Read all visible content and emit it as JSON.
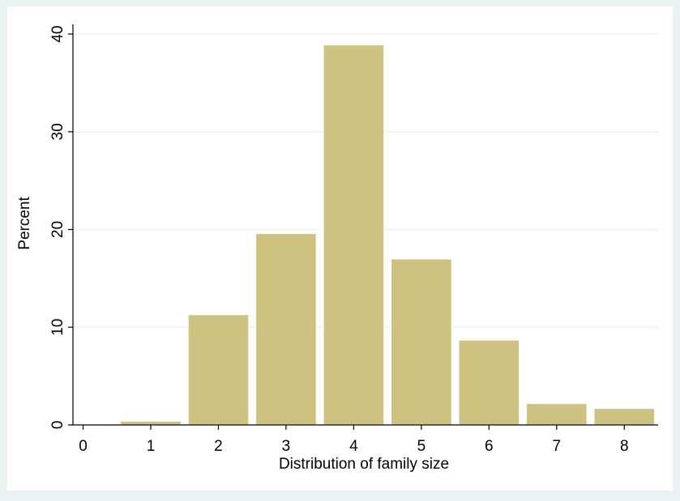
{
  "chart_data": {
    "type": "bar",
    "title": "",
    "xlabel": "Distribution of family size",
    "ylabel": "Percent",
    "categories": [
      "1",
      "2",
      "3",
      "4",
      "5",
      "6",
      "7",
      "8"
    ],
    "x": [
      1,
      2,
      3,
      4,
      5,
      6,
      7,
      8
    ],
    "values": [
      0.4,
      11.3,
      19.6,
      38.9,
      17.0,
      8.7,
      2.2,
      1.7
    ],
    "xlim": [
      -0.15,
      8.5
    ],
    "ylim": [
      0,
      41
    ],
    "x_ticks": [
      0,
      1,
      2,
      3,
      4,
      5,
      6,
      7,
      8
    ],
    "x_tick_labels": [
      "0",
      "1",
      "2",
      "3",
      "4",
      "5",
      "6",
      "7",
      "8"
    ],
    "y_ticks": [
      0,
      10,
      20,
      30,
      40
    ],
    "y_tick_labels": [
      "0",
      "10",
      "20",
      "30",
      "40"
    ],
    "grid": true,
    "legend": "none",
    "colors": {
      "background": "#eaf2f3",
      "plot_area": "#ffffff",
      "bar_fill": "#cdc27f",
      "bar_stroke": "#ffffff",
      "grid": "#eaf2f3",
      "axis": "#000000"
    }
  }
}
